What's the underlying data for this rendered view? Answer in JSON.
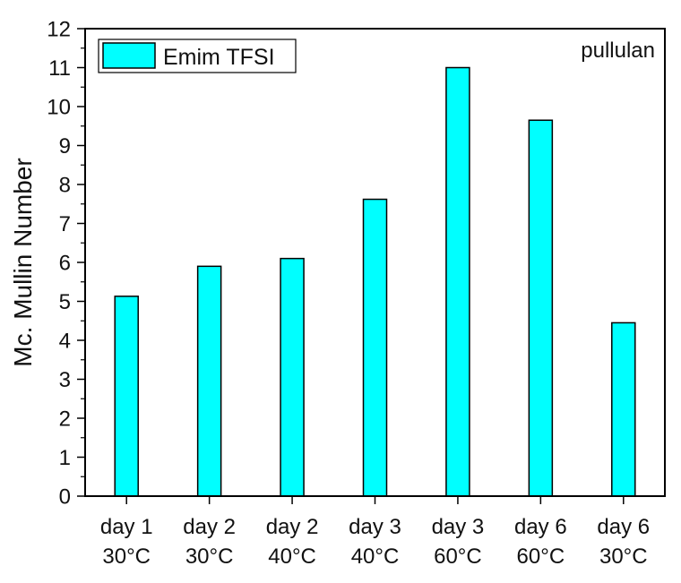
{
  "chart_data": {
    "type": "bar",
    "categories": [
      [
        "day 1",
        "30°C"
      ],
      [
        "day 2",
        "30°C"
      ],
      [
        "day 2",
        "40°C"
      ],
      [
        "day 3",
        "40°C"
      ],
      [
        "day 3",
        "60°C"
      ],
      [
        "day 6",
        "60°C"
      ],
      [
        "day 6",
        "30°C"
      ]
    ],
    "series": [
      {
        "name": "Emim TFSI",
        "values": [
          5.13,
          5.9,
          6.1,
          7.62,
          11.0,
          9.65,
          4.45
        ],
        "color": "#00FFFF"
      }
    ],
    "title": "",
    "xlabel": "",
    "ylabel": "Mc. Mullin Number",
    "ylim": [
      0,
      12
    ],
    "yticks": [
      0,
      1,
      2,
      3,
      4,
      5,
      6,
      7,
      8,
      9,
      10,
      11,
      12
    ],
    "annotation": "pullulan",
    "legend_position": "top-left",
    "grid": false
  }
}
